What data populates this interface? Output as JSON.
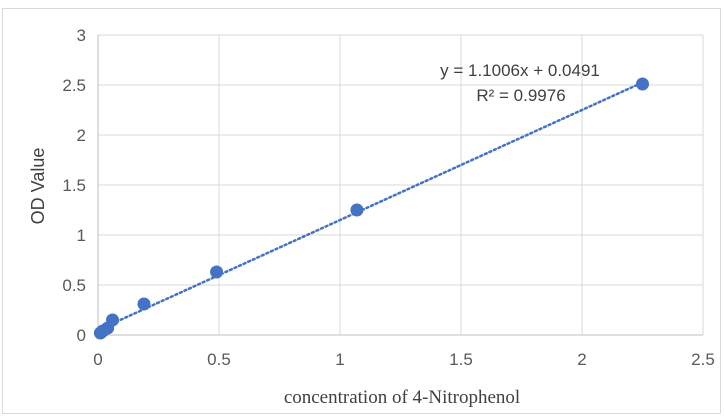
{
  "chart_data": {
    "type": "scatter",
    "title": "",
    "xlabel": "concentration of 4-Nitrophenol",
    "ylabel": "OD Value",
    "xlim": [
      0,
      2.5
    ],
    "ylim": [
      0,
      3
    ],
    "xticks": [
      "0",
      "0.5",
      "1",
      "1.5",
      "2",
      "2.5"
    ],
    "yticks": [
      "0",
      "0.5",
      "1",
      "1.5",
      "2",
      "2.5",
      "3"
    ],
    "grid": true,
    "legend": "none",
    "series": [
      {
        "points": [
          {
            "x": 0.01,
            "y": 0.02
          },
          {
            "x": 0.02,
            "y": 0.04
          },
          {
            "x": 0.04,
            "y": 0.07
          },
          {
            "x": 0.06,
            "y": 0.15
          },
          {
            "x": 0.19,
            "y": 0.31
          },
          {
            "x": 0.49,
            "y": 0.63
          },
          {
            "x": 1.07,
            "y": 1.25
          },
          {
            "x": 2.25,
            "y": 2.51
          }
        ],
        "color": "#4472c4"
      }
    ],
    "trendline": {
      "type": "linear",
      "slope": 1.1006,
      "intercept": 0.0491,
      "x_range": [
        0,
        2.25
      ],
      "style": "dotted",
      "color": "#4472c4"
    },
    "annotations": {
      "equation": "y = 1.1006x + 0.0491",
      "r_squared": "R² = 0.9976"
    }
  }
}
